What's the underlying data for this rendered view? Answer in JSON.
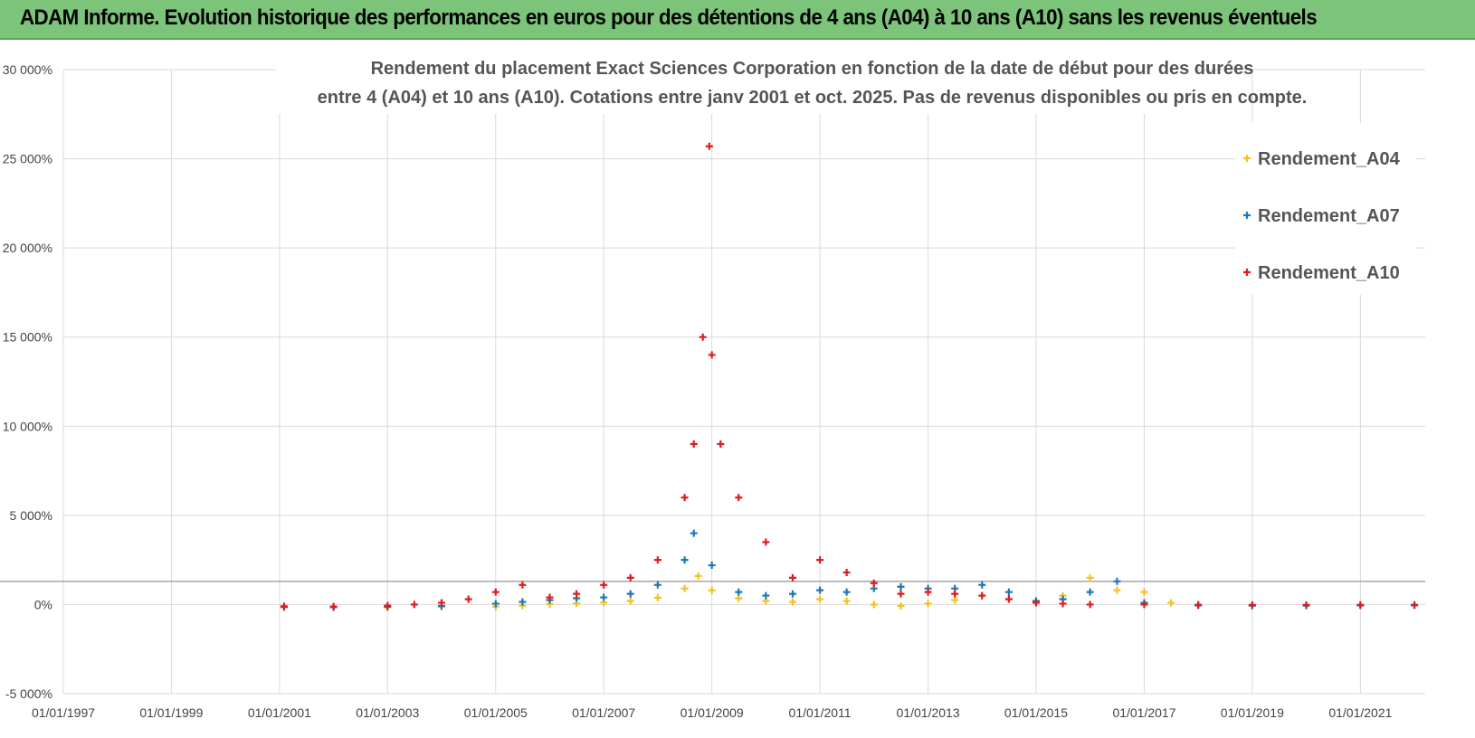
{
  "header": {
    "title": "ADAM Informe. Evolution historique des performances en euros pour des détentions de 4 ans (A04) à 10 ans (A10) sans les revenus éventuels"
  },
  "chart_data": {
    "type": "scatter",
    "title_line1": "Rendement du placement Exact Sciences Corporation en fonction de la date de début pour des durées",
    "title_line2": "entre 4 (A04) et 10 ans (A10).  Cotations entre janv 2001 et oct. 2025.  Pas de revenus disponibles ou pris en compte.",
    "xlabel": "",
    "ylabel": "",
    "xlim": [
      "1997-01-01",
      "2022-03-15"
    ],
    "ylim": [
      -5000,
      30000
    ],
    "x_ticks": [
      "01/01/1997",
      "01/01/1999",
      "01/01/2001",
      "01/01/2003",
      "01/01/2005",
      "01/01/2007",
      "01/01/2009",
      "01/01/2011",
      "01/01/2013",
      "01/01/2015",
      "01/01/2017",
      "01/01/2019",
      "01/01/2021"
    ],
    "y_ticks": [
      30000,
      25000,
      20000,
      15000,
      10000,
      5000,
      0,
      -5000
    ],
    "y_tick_labels": [
      "30 000%",
      "25 000%",
      "20 000%",
      "15 000%",
      "10 000%",
      "5 000%",
      "0%",
      "-5 000%"
    ],
    "reference_line_y": 1300,
    "grid": true,
    "legend_position": "top-right",
    "marker": "+",
    "series": [
      {
        "name": "Rendement_A04",
        "color": "#f5c21b",
        "points": [
          [
            "2001-02-01",
            -150
          ],
          [
            "2002-01-01",
            -160
          ],
          [
            "2003-01-01",
            -150
          ],
          [
            "2004-01-01",
            -130
          ],
          [
            "2005-01-01",
            -110
          ],
          [
            "2005-07-01",
            -60
          ],
          [
            "2006-01-01",
            30
          ],
          [
            "2006-07-01",
            60
          ],
          [
            "2007-01-01",
            120
          ],
          [
            "2007-07-01",
            200
          ],
          [
            "2008-01-01",
            380
          ],
          [
            "2008-07-01",
            900
          ],
          [
            "2008-10-01",
            1600
          ],
          [
            "2009-01-01",
            800
          ],
          [
            "2009-07-01",
            350
          ],
          [
            "2010-01-01",
            200
          ],
          [
            "2010-07-01",
            150
          ],
          [
            "2011-01-01",
            300
          ],
          [
            "2011-07-01",
            200
          ],
          [
            "2012-01-01",
            0
          ],
          [
            "2012-07-01",
            -80
          ],
          [
            "2013-01-01",
            50
          ],
          [
            "2013-07-01",
            250
          ],
          [
            "2014-01-01",
            500
          ],
          [
            "2014-07-01",
            300
          ],
          [
            "2015-01-01",
            200
          ],
          [
            "2015-07-01",
            500
          ],
          [
            "2016-01-01",
            1500
          ],
          [
            "2016-07-01",
            800
          ],
          [
            "2017-01-01",
            700
          ],
          [
            "2017-07-01",
            100
          ],
          [
            "2018-01-01",
            0
          ],
          [
            "2019-01-01",
            -50
          ],
          [
            "2020-01-01",
            -40
          ],
          [
            "2021-01-01",
            -30
          ],
          [
            "2022-01-01",
            -20
          ]
        ]
      },
      {
        "name": "Rendement_A07",
        "color": "#1f77b4",
        "points": [
          [
            "2001-02-01",
            -140
          ],
          [
            "2002-01-01",
            -150
          ],
          [
            "2003-01-01",
            -130
          ],
          [
            "2004-01-01",
            -80
          ],
          [
            "2005-01-01",
            50
          ],
          [
            "2005-07-01",
            150
          ],
          [
            "2006-01-01",
            250
          ],
          [
            "2006-07-01",
            350
          ],
          [
            "2007-01-01",
            400
          ],
          [
            "2007-07-01",
            600
          ],
          [
            "2008-01-01",
            1100
          ],
          [
            "2008-07-01",
            2500
          ],
          [
            "2008-09-01",
            4000
          ],
          [
            "2009-01-01",
            2200
          ],
          [
            "2009-07-01",
            700
          ],
          [
            "2010-01-01",
            500
          ],
          [
            "2010-07-01",
            600
          ],
          [
            "2011-01-01",
            800
          ],
          [
            "2011-07-01",
            700
          ],
          [
            "2012-01-01",
            900
          ],
          [
            "2012-07-01",
            1000
          ],
          [
            "2013-01-01",
            900
          ],
          [
            "2013-07-01",
            900
          ],
          [
            "2014-01-01",
            1100
          ],
          [
            "2014-07-01",
            700
          ],
          [
            "2015-01-01",
            200
          ],
          [
            "2015-07-01",
            300
          ],
          [
            "2016-01-01",
            700
          ],
          [
            "2016-07-01",
            1300
          ],
          [
            "2017-01-01",
            100
          ],
          [
            "2018-01-01",
            -50
          ],
          [
            "2019-01-01",
            -60
          ],
          [
            "2020-01-01",
            -60
          ],
          [
            "2021-01-01",
            -50
          ],
          [
            "2022-01-01",
            -40
          ]
        ]
      },
      {
        "name": "Rendement_A10",
        "color": "#e31a1c",
        "points": [
          [
            "2001-02-01",
            -100
          ],
          [
            "2002-01-01",
            -110
          ],
          [
            "2003-01-01",
            -60
          ],
          [
            "2003-07-01",
            0
          ],
          [
            "2004-01-01",
            100
          ],
          [
            "2004-07-01",
            300
          ],
          [
            "2005-01-01",
            700
          ],
          [
            "2005-07-01",
            1100
          ],
          [
            "2006-01-01",
            400
          ],
          [
            "2006-07-01",
            600
          ],
          [
            "2007-01-01",
            1100
          ],
          [
            "2007-07-01",
            1500
          ],
          [
            "2008-01-01",
            2500
          ],
          [
            "2008-07-01",
            6000
          ],
          [
            "2008-09-01",
            9000
          ],
          [
            "2008-11-01",
            15000
          ],
          [
            "2008-12-15",
            25700
          ],
          [
            "2009-01-01",
            14000
          ],
          [
            "2009-03-01",
            9000
          ],
          [
            "2009-07-01",
            6000
          ],
          [
            "2010-01-01",
            3500
          ],
          [
            "2010-07-01",
            1500
          ],
          [
            "2011-01-01",
            2500
          ],
          [
            "2011-07-01",
            1800
          ],
          [
            "2012-01-01",
            1200
          ],
          [
            "2012-07-01",
            600
          ],
          [
            "2013-01-01",
            700
          ],
          [
            "2013-07-01",
            600
          ],
          [
            "2014-01-01",
            500
          ],
          [
            "2014-07-01",
            300
          ],
          [
            "2015-01-01",
            100
          ],
          [
            "2015-07-01",
            50
          ],
          [
            "2016-01-01",
            0
          ],
          [
            "2017-01-01",
            0
          ],
          [
            "2018-01-01",
            -20
          ],
          [
            "2019-01-01",
            -20
          ],
          [
            "2020-01-01",
            -20
          ],
          [
            "2021-01-01",
            -20
          ],
          [
            "2022-01-01",
            -20
          ]
        ]
      }
    ]
  }
}
